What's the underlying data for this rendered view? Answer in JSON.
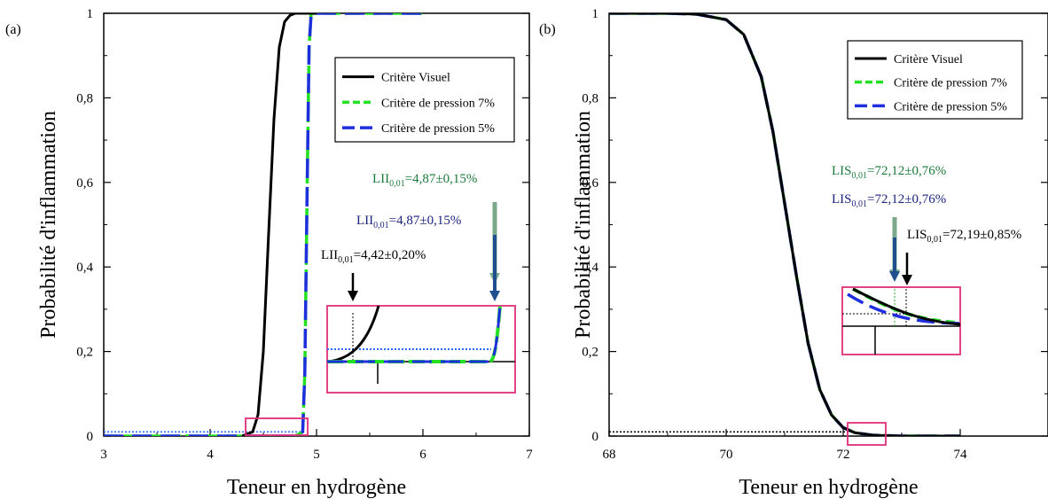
{
  "colors": {
    "visual": "#000000",
    "pressure7": "#22e022",
    "pressure5": "#1f2fdd",
    "zoom_box": "#e0307a",
    "annot_green": "#1a7a3a",
    "annot_blue": "#1a237e",
    "annot_black": "#000000"
  },
  "chart_data": [
    {
      "panel_label": "(a)",
      "type": "line",
      "xlabel": "Teneur en hydrogène",
      "ylabel": "Probabilité d'inflammation",
      "xlim": [
        3,
        7
      ],
      "ylim": [
        0,
        1
      ],
      "xticks": [
        "3",
        "4",
        "5",
        "6",
        "7"
      ],
      "yticks": [
        "0",
        "0,2",
        "0,4",
        "0,6",
        "0,8",
        "1"
      ],
      "legend": {
        "position": "top-right",
        "entries": [
          "Critère Visuel",
          "Critère de pression 7%",
          "Critère de pression 5%"
        ]
      },
      "series": [
        {
          "name": "Critère Visuel",
          "style": "solid",
          "x": [
            4.3,
            4.4,
            4.45,
            4.5,
            4.55,
            4.6,
            4.65,
            4.7,
            4.75,
            4.8,
            4.85,
            4.9,
            5.0
          ],
          "y": [
            0,
            0.01,
            0.05,
            0.2,
            0.48,
            0.75,
            0.92,
            0.98,
            0.995,
            1,
            1,
            1,
            1
          ]
        },
        {
          "name": "Critère de pression 7%",
          "style": "dashed",
          "x": [
            3.0,
            4.8,
            4.87,
            4.89,
            4.91,
            4.93,
            4.95,
            6.0
          ],
          "y": [
            0,
            0,
            0.01,
            0.15,
            0.55,
            0.92,
            1,
            1
          ]
        },
        {
          "name": "Critère de pression 5%",
          "style": "dashed",
          "x": [
            3.0,
            4.8,
            4.87,
            4.89,
            4.91,
            4.93,
            4.95,
            6.0
          ],
          "y": [
            0,
            0,
            0.01,
            0.15,
            0.55,
            0.92,
            1,
            1
          ]
        }
      ],
      "threshold": 0.01,
      "annotations": [
        {
          "main": "LII",
          "sub": "0,01",
          "rest": "=4,87±0,15%",
          "color": "green"
        },
        {
          "main": "LII",
          "sub": "0,01",
          "rest": "=4,87±0,15%",
          "color": "blue"
        },
        {
          "main": "LII",
          "sub": "0,01",
          "rest": "=4,42±0,20%",
          "color": "black"
        }
      ]
    },
    {
      "panel_label": "(b)",
      "type": "line",
      "xlabel": "Teneur en hydrogène",
      "ylabel": "Probabilité d'inflammation",
      "xlim": [
        68,
        75.5
      ],
      "ylim": [
        0,
        1
      ],
      "xticks": [
        "68",
        "70",
        "72",
        "74"
      ],
      "yticks": [
        "0",
        "0,2",
        "0,4",
        "0,6",
        "0,8",
        "1"
      ],
      "legend": {
        "position": "top-right",
        "entries": [
          "Critère Visuel",
          "Critère de pression 7%",
          "Critère de pression 5%"
        ]
      },
      "series": [
        {
          "name": "Critère Visuel",
          "style": "solid",
          "x": [
            68.0,
            69.0,
            69.5,
            70.0,
            70.3,
            70.6,
            70.8,
            71.0,
            71.2,
            71.4,
            71.6,
            71.8,
            72.0,
            72.2,
            72.5,
            73.0,
            74.0
          ],
          "y": [
            1,
            1,
            0.998,
            0.985,
            0.95,
            0.85,
            0.72,
            0.55,
            0.38,
            0.22,
            0.11,
            0.05,
            0.02,
            0.008,
            0.002,
            0,
            0
          ]
        },
        {
          "name": "Critère de pression 7%",
          "style": "dashed",
          "x": [
            68.0,
            69.0,
            69.5,
            70.0,
            70.3,
            70.6,
            70.8,
            71.0,
            71.2,
            71.4,
            71.6,
            71.8,
            72.0,
            72.2,
            72.5,
            73.0,
            74.0
          ],
          "y": [
            1,
            1,
            0.998,
            0.985,
            0.95,
            0.85,
            0.72,
            0.55,
            0.38,
            0.22,
            0.11,
            0.05,
            0.02,
            0.008,
            0.002,
            0,
            0
          ]
        },
        {
          "name": "Critère de pression 5%",
          "style": "dashed",
          "x": [
            68.0,
            69.0,
            69.5,
            70.0,
            70.3,
            70.6,
            70.8,
            71.0,
            71.2,
            71.4,
            71.6,
            71.8,
            72.0,
            72.2,
            72.5,
            73.0,
            74.0
          ],
          "y": [
            1,
            1,
            0.998,
            0.985,
            0.95,
            0.85,
            0.72,
            0.55,
            0.38,
            0.22,
            0.11,
            0.05,
            0.02,
            0.008,
            0.002,
            0,
            0
          ]
        }
      ],
      "threshold": 0.01,
      "annotations": [
        {
          "main": "LIS",
          "sub": "0,01",
          "rest": "=72,12±0,76%",
          "color": "green"
        },
        {
          "main": "LIS",
          "sub": "0,01",
          "rest": "=72,12±0,76%",
          "color": "blue"
        },
        {
          "main": "LIS",
          "sub": "0,01",
          "rest": "=72,19±0,85%",
          "color": "black"
        }
      ]
    }
  ]
}
